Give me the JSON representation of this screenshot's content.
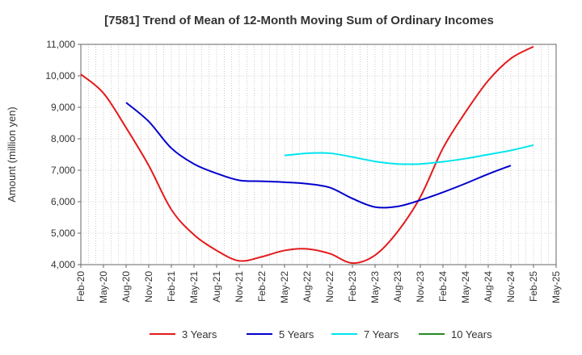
{
  "chart_data": {
    "type": "line",
    "title": "[7581]  Trend of Mean of 12-Month Moving Sum of Ordinary Incomes",
    "xlabel": "",
    "ylabel": "Amount (million yen)",
    "ylim": [
      4000,
      11000
    ],
    "yticks": [
      4000,
      5000,
      6000,
      7000,
      8000,
      9000,
      10000,
      11000
    ],
    "ytick_labels": [
      "4,000",
      "5,000",
      "6,000",
      "7,000",
      "8,000",
      "9,000",
      "10,000",
      "11,000"
    ],
    "x_labels": [
      "Feb-20",
      "May-20",
      "Aug-20",
      "Nov-20",
      "Feb-21",
      "May-21",
      "Aug-21",
      "Nov-21",
      "Feb-22",
      "May-22",
      "Aug-22",
      "Nov-22",
      "Feb-23",
      "May-23",
      "Aug-23",
      "Nov-23",
      "Feb-24",
      "May-24",
      "Aug-24",
      "Nov-24",
      "Feb-25",
      "May-25"
    ],
    "grid": true,
    "legend_position": "bottom",
    "series": [
      {
        "name": "3 Years",
        "color": "#e41a1c",
        "start_index": 0,
        "values": [
          10050,
          9450,
          8350,
          7150,
          5750,
          4950,
          4450,
          4120,
          4250,
          4450,
          4500,
          4350,
          4050,
          4300,
          5050,
          6150,
          7700,
          8850,
          9850,
          10550,
          10930
        ]
      },
      {
        "name": "5 Years",
        "color": "#0000cd",
        "start_index": 2,
        "values": [
          9150,
          8550,
          7700,
          7200,
          6900,
          6680,
          6650,
          6620,
          6570,
          6450,
          6100,
          5830,
          5850,
          6050,
          6300,
          6580,
          6880,
          7150
        ]
      },
      {
        "name": "7 Years",
        "color": "#00e5ee",
        "start_index": 9,
        "values": [
          7470,
          7540,
          7540,
          7420,
          7280,
          7200,
          7200,
          7270,
          7370,
          7500,
          7630,
          7800
        ]
      },
      {
        "name": "10 Years",
        "color": "#228b22",
        "start_index": 0,
        "values": []
      }
    ]
  }
}
